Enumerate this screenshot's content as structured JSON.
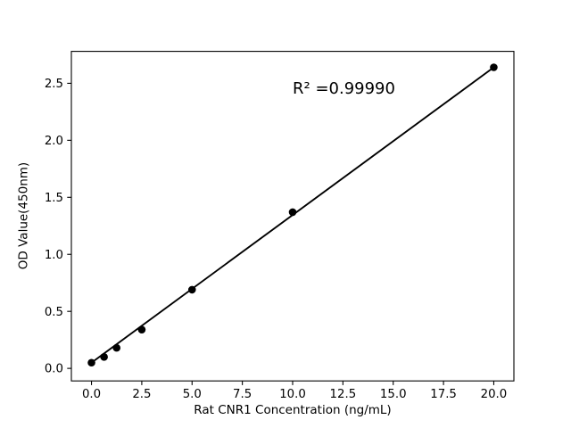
{
  "chart_data": {
    "type": "scatter",
    "title": "",
    "xlabel": "Rat CNR1 Concentration (ng/mL)",
    "ylabel": "OD Value(450nm)",
    "x": [
      0,
      0.625,
      1.25,
      2.5,
      5,
      10,
      20
    ],
    "y": [
      0.05,
      0.1,
      0.18,
      0.34,
      0.69,
      1.37,
      2.64
    ],
    "trendline": {
      "x": [
        0,
        20
      ],
      "y": [
        0.05,
        2.64
      ]
    },
    "annotation": {
      "text": "R² =0.99990",
      "x": 10,
      "y": 2.4
    },
    "xticks": [
      0.0,
      2.5,
      5.0,
      7.5,
      10.0,
      12.5,
      15.0,
      17.5,
      20.0
    ],
    "xtick_labels": [
      "0.0",
      "2.5",
      "5.0",
      "7.5",
      "10.0",
      "12.5",
      "15.0",
      "17.5",
      "20.0"
    ],
    "yticks": [
      0.0,
      0.5,
      1.0,
      1.5,
      2.0,
      2.5
    ],
    "ytick_labels": [
      "0.0",
      "0.5",
      "1.0",
      "1.5",
      "2.0",
      "2.5"
    ],
    "xlim": [
      -1,
      21
    ],
    "ylim": [
      -0.11,
      2.78
    ],
    "grid": false,
    "legend": null,
    "marker_color": "#000000",
    "line_color": "#000000",
    "axis_color": "#000000",
    "background": "#ffffff"
  }
}
